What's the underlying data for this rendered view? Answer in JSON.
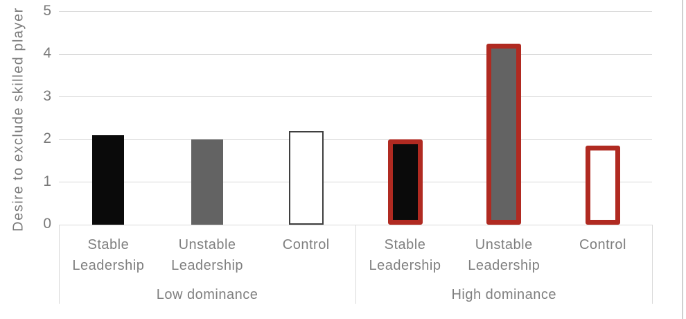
{
  "style": {
    "grid_color": "#d9d9d9",
    "axis_text_color": "#7a7a7a",
    "page_edge_color": "#cfcfcf",
    "black_fill": "#0a0a0a",
    "gray_fill": "#636363",
    "white_fill": "#ffffff",
    "dark_outline": "#3f3f3f",
    "red_outline": "#b02a21"
  },
  "chart_data": {
    "type": "bar",
    "title": "",
    "ylabel": "Desire to exclude skilled player",
    "xlabel": "",
    "ylim": [
      0,
      5
    ],
    "yticks": [
      "0",
      "1",
      "2",
      "3",
      "4",
      "5"
    ],
    "grid": "horizontal",
    "legend_position": "none",
    "groups": [
      {
        "label": "Low dominance",
        "categories": [
          "Stable Leadership",
          "Unstable Leadership",
          "Control"
        ]
      },
      {
        "label": "High dominance",
        "categories": [
          "Stable Leadership",
          "Unstable Leadership",
          "Control"
        ]
      }
    ],
    "bars": [
      {
        "group": "Low dominance",
        "category": "Stable Leadership",
        "value": 2.1,
        "fill": "#0a0a0a",
        "border_color": "#0a0a0a",
        "border_px": 0
      },
      {
        "group": "Low dominance",
        "category": "Unstable Leadership",
        "value": 2.0,
        "fill": "#636363",
        "border_color": "#636363",
        "border_px": 0
      },
      {
        "group": "Low dominance",
        "category": "Control",
        "value": 2.2,
        "fill": "#ffffff",
        "border_color": "#3f3f3f",
        "border_px": 2
      },
      {
        "group": "High dominance",
        "category": "Stable Leadership",
        "value": 2.0,
        "fill": "#0a0a0a",
        "border_color": "#b02a21",
        "border_px": 7
      },
      {
        "group": "High dominance",
        "category": "Unstable Leadership",
        "value": 4.25,
        "fill": "#636363",
        "border_color": "#b02a21",
        "border_px": 7
      },
      {
        "group": "High dominance",
        "category": "Control",
        "value": 1.85,
        "fill": "#ffffff",
        "border_color": "#b02a21",
        "border_px": 7
      }
    ]
  }
}
